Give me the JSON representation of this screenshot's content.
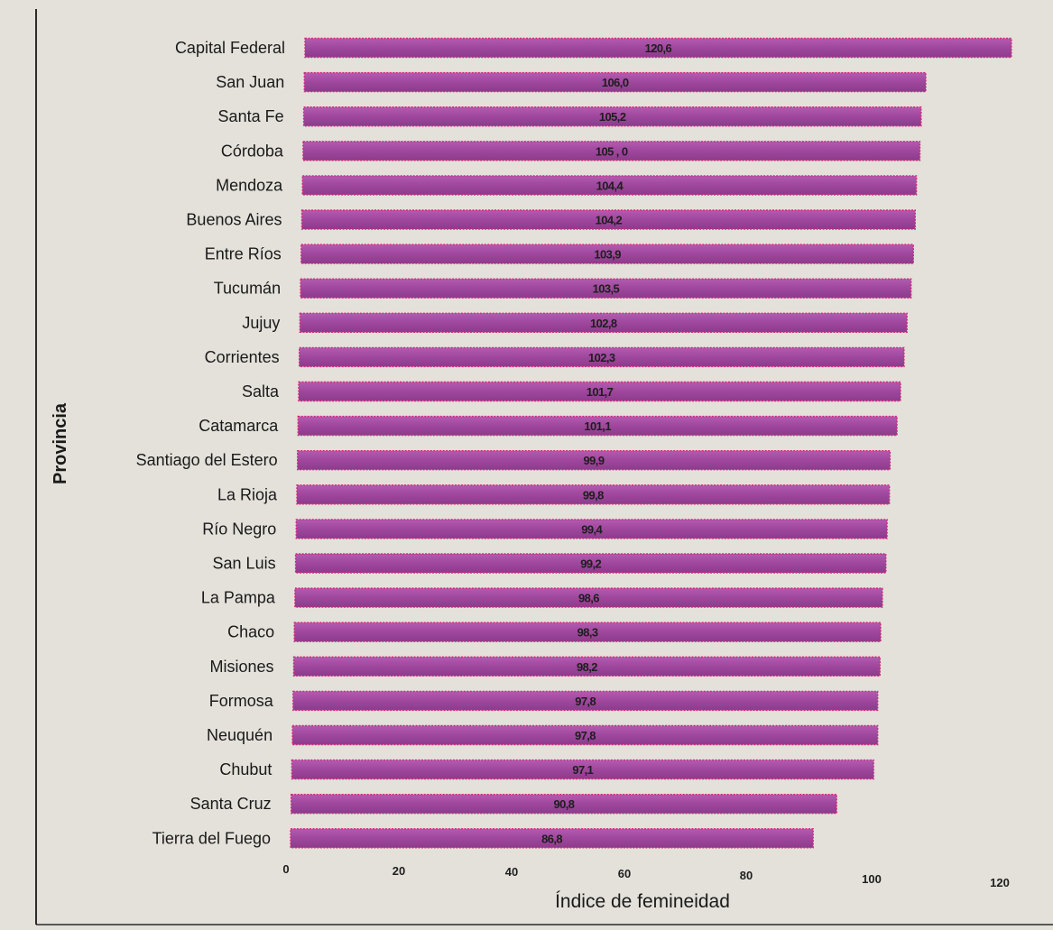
{
  "chart_data": {
    "type": "bar",
    "orientation": "horizontal",
    "categories": [
      "Capital Federal",
      "San Juan",
      "Santa Fe",
      "Córdoba",
      "Mendoza",
      "Buenos  Aires",
      "Entre Ríos",
      "Tucumán",
      "Jujuy",
      "Corrientes",
      "Salta",
      "Catamarca",
      "Santiago del Estero",
      "La Rioja",
      "Río Negro",
      "San Luis",
      "La Pampa",
      "Chaco",
      "Misiones",
      "Formosa",
      "Neuquén",
      "Chubut",
      "Santa Cruz",
      "Tierra del Fuego"
    ],
    "values": [
      120.6,
      106.0,
      105.2,
      105.0,
      104.4,
      104.2,
      103.9,
      103.5,
      102.8,
      102.3,
      101.7,
      101.1,
      99.9,
      99.8,
      99.4,
      99.2,
      98.6,
      98.3,
      98.2,
      97.8,
      97.8,
      97.1,
      90.8,
      86.8
    ],
    "value_labels": [
      "120,6",
      "106,0",
      "105,2",
      "105 , 0",
      "104,4",
      "104,2",
      "103,9",
      "103,5",
      "102,8",
      "102,3",
      "101,7",
      "101,1",
      "99,9",
      "99,8",
      "99,4",
      "99,2",
      "98,6",
      "98,3",
      "98,2",
      "97,8",
      "97,8",
      "97,1",
      "90,8",
      "86,8"
    ],
    "xlabel": "Índice de femineidad",
    "ylabel": "Provincia",
    "xlim": [
      0,
      120
    ],
    "xticks": [
      "0",
      "20",
      "40",
      "60",
      "80",
      "100",
      "120"
    ],
    "grid": false,
    "colors": {
      "bar_fill": "#a04a9e",
      "bar_outline": "#d02a7c",
      "frame": "#2b2b2b"
    }
  }
}
